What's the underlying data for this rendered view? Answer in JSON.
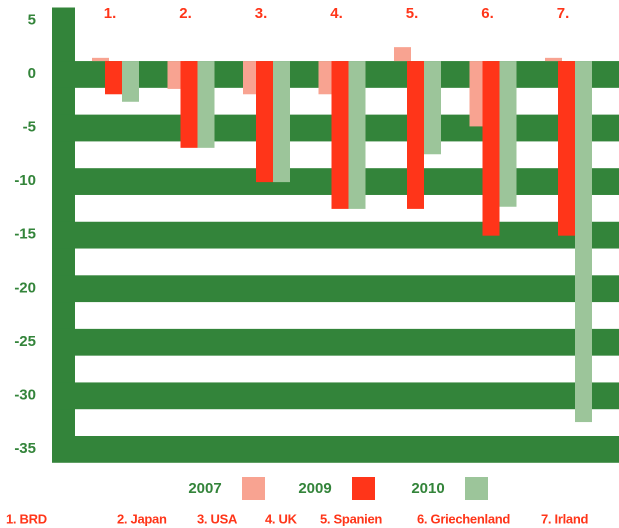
{
  "chart_data": {
    "type": "bar",
    "category_numbers": [
      "1.",
      "2.",
      "3.",
      "4.",
      "5.",
      "6.",
      "7."
    ],
    "categories": [
      "1. BRD",
      "2. Japan",
      "3. USA",
      "4. UK",
      "5. Spanien",
      "6. Griechenland",
      "7. Irland"
    ],
    "series": [
      {
        "name": "2007",
        "color": "#f8a391",
        "values": [
          0.3,
          -2.6,
          -3.1,
          -3.1,
          1.3,
          -6.1,
          0.3
        ]
      },
      {
        "name": "2009",
        "color": "#ff3519",
        "values": [
          -3.1,
          -8.1,
          -11.3,
          -13.8,
          -13.8,
          -16.3,
          -16.3
        ]
      },
      {
        "name": "2010",
        "color": "#9cc59a",
        "values": [
          -3.8,
          -8.1,
          -11.3,
          -13.8,
          -8.7,
          -13.6,
          -33.7
        ]
      }
    ],
    "ylim": [
      -35,
      5
    ],
    "yticks": [
      5,
      0,
      -5,
      -10,
      -15,
      -20,
      -25,
      -30,
      -35
    ],
    "grid": true,
    "axis_color": "#33843a"
  }
}
